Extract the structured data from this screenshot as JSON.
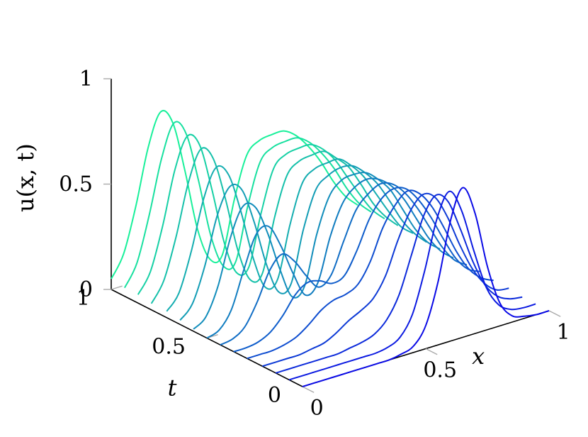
{
  "chart_data": {
    "type": "line",
    "projection": "3d-waterfall",
    "title": "",
    "xlabel": "x",
    "ylabel": "t",
    "zlabel": "u(x, t)",
    "xlim": [
      0,
      1
    ],
    "ylim": [
      0,
      1
    ],
    "zlim": [
      0,
      1
    ],
    "ticks": {
      "x": [
        {
          "value": 0,
          "label": "0"
        },
        {
          "value": 0.5,
          "label": "0.5"
        },
        {
          "value": 1,
          "label": "1"
        }
      ],
      "t": [
        {
          "value": 0,
          "label": "0"
        },
        {
          "value": 0.5,
          "label": "0.5"
        },
        {
          "value": 1,
          "label": "1"
        }
      ],
      "z": [
        {
          "value": 0,
          "label": "0"
        },
        {
          "value": 0.5,
          "label": "0.5"
        },
        {
          "value": 1,
          "label": "1"
        }
      ]
    },
    "grid": false,
    "legend": "none",
    "colormap": {
      "t0": "#0a0ae6",
      "t1": "#18f09a"
    },
    "x": [
      0.0,
      0.05,
      0.1,
      0.15,
      0.2,
      0.25,
      0.3,
      0.35,
      0.4,
      0.45,
      0.5,
      0.55,
      0.6,
      0.65,
      0.7,
      0.75,
      0.8,
      0.85,
      0.9,
      0.95,
      1.0
    ],
    "series": [
      {
        "t": 0.0,
        "values": [
          0.0,
          0.0,
          0.0,
          0.0,
          0.0,
          0.0,
          0.0,
          0.0,
          0.01,
          0.03,
          0.11,
          0.3,
          0.57,
          0.71,
          0.57,
          0.3,
          0.11,
          0.03,
          0.01,
          0.0,
          0.0
        ]
      },
      {
        "t": 0.07,
        "values": [
          0.0,
          0.0,
          0.0,
          0.0,
          0.0,
          0.0,
          0.0,
          0.0,
          0.01,
          0.04,
          0.13,
          0.32,
          0.55,
          0.66,
          0.55,
          0.34,
          0.15,
          0.05,
          0.01,
          0.0,
          0.0
        ]
      },
      {
        "t": 0.14,
        "values": [
          0.0,
          0.0,
          0.0,
          0.0,
          0.0,
          0.0,
          0.01,
          0.02,
          0.04,
          0.09,
          0.19,
          0.36,
          0.53,
          0.61,
          0.56,
          0.41,
          0.24,
          0.11,
          0.04,
          0.01,
          0.0
        ]
      },
      {
        "t": 0.21,
        "values": [
          0.0,
          0.0,
          0.0,
          0.0,
          0.01,
          0.02,
          0.05,
          0.09,
          0.12,
          0.16,
          0.25,
          0.4,
          0.52,
          0.58,
          0.55,
          0.44,
          0.29,
          0.16,
          0.07,
          0.02,
          0.01
        ]
      },
      {
        "t": 0.29,
        "values": [
          0.0,
          0.0,
          0.0,
          0.01,
          0.03,
          0.07,
          0.12,
          0.15,
          0.16,
          0.19,
          0.28,
          0.42,
          0.51,
          0.56,
          0.53,
          0.45,
          0.33,
          0.2,
          0.1,
          0.04,
          0.01
        ]
      },
      {
        "t": 0.36,
        "values": [
          0.0,
          0.0,
          0.01,
          0.04,
          0.1,
          0.18,
          0.22,
          0.21,
          0.18,
          0.2,
          0.3,
          0.43,
          0.51,
          0.54,
          0.52,
          0.45,
          0.35,
          0.23,
          0.12,
          0.05,
          0.02
        ]
      },
      {
        "t": 0.43,
        "values": [
          0.0,
          0.01,
          0.05,
          0.15,
          0.28,
          0.34,
          0.29,
          0.2,
          0.13,
          0.17,
          0.31,
          0.44,
          0.5,
          0.53,
          0.51,
          0.45,
          0.36,
          0.25,
          0.14,
          0.06,
          0.02
        ]
      },
      {
        "t": 0.5,
        "values": [
          0.0,
          0.02,
          0.1,
          0.27,
          0.42,
          0.44,
          0.33,
          0.18,
          0.06,
          0.1,
          0.3,
          0.44,
          0.5,
          0.52,
          0.5,
          0.45,
          0.37,
          0.26,
          0.15,
          0.07,
          0.02
        ]
      },
      {
        "t": 0.57,
        "values": [
          0.01,
          0.05,
          0.18,
          0.39,
          0.52,
          0.5,
          0.36,
          0.17,
          0.02,
          0.05,
          0.28,
          0.44,
          0.5,
          0.51,
          0.5,
          0.45,
          0.38,
          0.27,
          0.16,
          0.08,
          0.03
        ]
      },
      {
        "t": 0.64,
        "values": [
          0.02,
          0.08,
          0.24,
          0.46,
          0.58,
          0.55,
          0.38,
          0.16,
          0.01,
          0.03,
          0.27,
          0.44,
          0.49,
          0.51,
          0.5,
          0.45,
          0.38,
          0.28,
          0.17,
          0.09,
          0.03
        ]
      },
      {
        "t": 0.71,
        "values": [
          0.03,
          0.1,
          0.28,
          0.51,
          0.64,
          0.59,
          0.4,
          0.16,
          0.0,
          0.02,
          0.26,
          0.44,
          0.49,
          0.5,
          0.5,
          0.45,
          0.38,
          0.28,
          0.18,
          0.09,
          0.04
        ]
      },
      {
        "t": 0.79,
        "values": [
          0.03,
          0.12,
          0.31,
          0.55,
          0.69,
          0.63,
          0.42,
          0.16,
          0.0,
          0.01,
          0.26,
          0.44,
          0.49,
          0.5,
          0.5,
          0.45,
          0.39,
          0.29,
          0.18,
          0.1,
          0.04
        ]
      },
      {
        "t": 0.86,
        "values": [
          0.04,
          0.13,
          0.33,
          0.58,
          0.72,
          0.66,
          0.43,
          0.16,
          0.0,
          0.01,
          0.25,
          0.44,
          0.49,
          0.5,
          0.5,
          0.46,
          0.39,
          0.29,
          0.19,
          0.1,
          0.04
        ]
      },
      {
        "t": 0.93,
        "values": [
          0.04,
          0.14,
          0.35,
          0.6,
          0.75,
          0.68,
          0.44,
          0.16,
          0.0,
          0.0,
          0.25,
          0.44,
          0.49,
          0.5,
          0.5,
          0.46,
          0.39,
          0.3,
          0.19,
          0.1,
          0.04
        ]
      },
      {
        "t": 1.0,
        "values": [
          0.05,
          0.15,
          0.36,
          0.62,
          0.77,
          0.7,
          0.45,
          0.16,
          0.0,
          0.0,
          0.25,
          0.44,
          0.49,
          0.5,
          0.5,
          0.46,
          0.39,
          0.3,
          0.19,
          0.1,
          0.04
        ]
      }
    ]
  }
}
